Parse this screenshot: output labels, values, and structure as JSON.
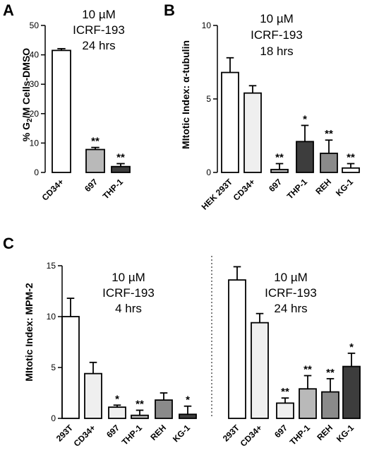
{
  "colors": {
    "white": "#ffffff",
    "light_gray": "#efefef",
    "gray": "#b9b9b9",
    "mid_gray": "#8a8a8a",
    "dark_gray": "#3d3d3d",
    "axis": "#000000"
  },
  "chart_data": [
    {
      "panel": "A",
      "type": "bar",
      "ylabel": "% G2/M Cells-DMSO",
      "ylim": [
        0,
        50
      ],
      "yticks": [
        "0",
        "10",
        "20",
        "30",
        "40",
        "50"
      ],
      "conditions": [
        "10 µM",
        "ICRF-193",
        "24 hrs"
      ],
      "categories": [
        "CD34+",
        "697",
        "THP-1"
      ],
      "values": [
        41.5,
        7.8,
        2.0
      ],
      "errors": [
        0.6,
        0.7,
        1.0
      ],
      "significance": [
        "",
        "**",
        "**"
      ]
    },
    {
      "panel": "B",
      "type": "bar",
      "ylabel": "MItotic Index: α-tubulin",
      "ylim": [
        0,
        10
      ],
      "yticks": [
        "0",
        "5",
        "10"
      ],
      "conditions": [
        "10 µM",
        "ICRF-193",
        "18 hrs"
      ],
      "categories": [
        "HEK 293T",
        "CD34+",
        "697",
        "THP-1",
        "REH",
        "KG-1"
      ],
      "values": [
        6.8,
        5.4,
        0.2,
        2.1,
        1.3,
        0.3
      ],
      "errors": [
        1.0,
        0.5,
        0.4,
        1.1,
        0.9,
        0.3
      ],
      "significance": [
        "",
        "",
        "**",
        "*",
        "**",
        "**"
      ]
    },
    {
      "panel": "C",
      "type": "bar",
      "ylabel": "MItotic Index: MPM-2",
      "ylim": [
        0,
        15
      ],
      "yticks": [
        "0",
        "5",
        "10",
        "15"
      ],
      "groups": [
        {
          "conditions": [
            "10 µM",
            "ICRF-193",
            "4 hrs"
          ],
          "categories": [
            "293T",
            "CD34+",
            "697",
            "THP-1",
            "REH",
            "KG-1"
          ],
          "values": [
            10.0,
            4.4,
            1.1,
            0.3,
            1.8,
            0.4
          ],
          "errors": [
            1.8,
            1.1,
            0.2,
            0.5,
            0.7,
            0.8
          ],
          "significance": [
            "",
            "",
            "*",
            "**",
            "",
            "*"
          ]
        },
        {
          "conditions": [
            "10 µM",
            "ICRF-193",
            "24 hrs"
          ],
          "categories": [
            "293T",
            "CD34+",
            "697",
            "THP-1",
            "REH",
            "KG-1"
          ],
          "values": [
            13.6,
            9.4,
            1.5,
            2.9,
            2.6,
            5.1
          ],
          "errors": [
            1.3,
            0.9,
            0.5,
            1.3,
            1.3,
            1.3
          ],
          "significance": [
            "",
            "",
            "**",
            "**",
            "**",
            "*"
          ]
        }
      ]
    }
  ]
}
